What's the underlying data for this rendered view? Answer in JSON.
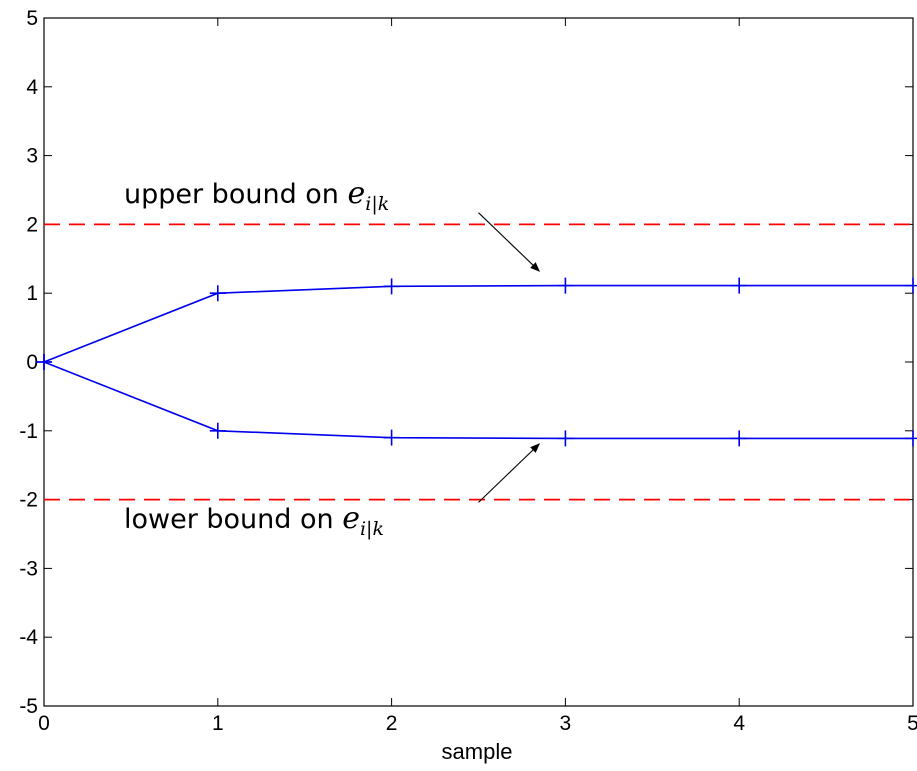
{
  "chart_data": {
    "type": "line",
    "title": "",
    "xlabel": "sample",
    "ylabel": "",
    "xlim": [
      0,
      5
    ],
    "ylim": [
      -5,
      5
    ],
    "x_ticks": [
      "0",
      "1",
      "2",
      "3",
      "4",
      "5"
    ],
    "y_ticks": [
      "-5",
      "-4",
      "-3",
      "-2",
      "-1",
      "0",
      "1",
      "2",
      "3",
      "4",
      "5"
    ],
    "grid": false,
    "series": [
      {
        "x": [
          0,
          1,
          2,
          3,
          4,
          5
        ],
        "values": [
          0,
          1.0,
          1.1,
          1.11,
          1.11,
          1.11
        ],
        "color": "#0000ee",
        "style": "solid",
        "marker": "+"
      },
      {
        "x": [
          0,
          1,
          2,
          3,
          4,
          5
        ],
        "values": [
          0,
          -1.0,
          -1.1,
          -1.11,
          -1.11,
          -1.11
        ],
        "color": "#0000ee",
        "style": "solid",
        "marker": "+"
      },
      {
        "x": [
          0,
          5
        ],
        "values": [
          2,
          2
        ],
        "color": "#ff0000",
        "style": "dashed"
      },
      {
        "x": [
          0,
          5
        ],
        "values": [
          -2,
          -2
        ],
        "color": "#ff0000",
        "style": "dashed"
      }
    ],
    "annotations": [
      {
        "text": "upper bound on ",
        "math_base": "e",
        "math_sub": "i|k",
        "arrow_from": [
          2.5,
          2.17
        ],
        "arrow_to": [
          2.85,
          1.32
        ]
      },
      {
        "text": "lower bound on ",
        "math_base": "e",
        "math_sub": "i|k",
        "arrow_from": [
          2.5,
          -2.04
        ],
        "arrow_to": [
          2.85,
          -1.19
        ]
      }
    ]
  }
}
